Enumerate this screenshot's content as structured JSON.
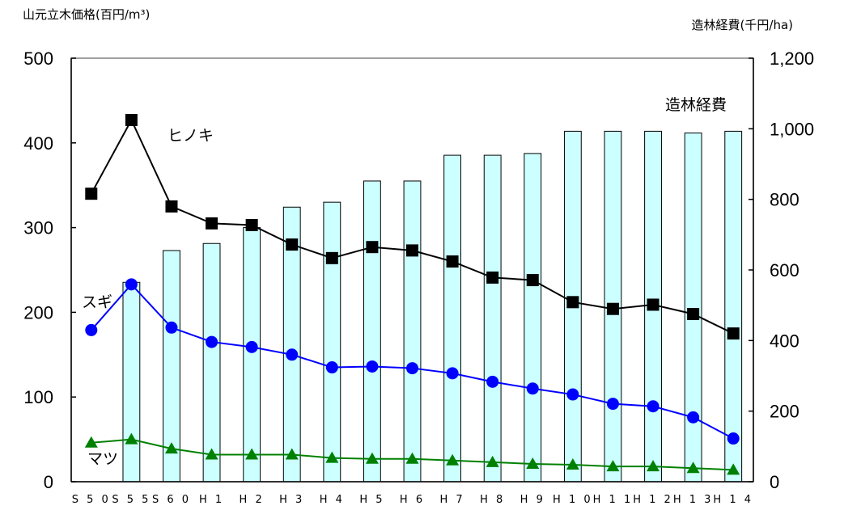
{
  "chart_data": {
    "type": "bar-line",
    "left_axis_title": "山元立木価格(百円/m³)",
    "right_axis_title": "造林経費(千円/ha)",
    "categories": [
      "S50",
      "S55",
      "S60",
      "H1",
      "H2",
      "H3",
      "H4",
      "H5",
      "H6",
      "H7",
      "H8",
      "H9",
      "H10",
      "H11",
      "H12",
      "H13",
      "H14"
    ],
    "left_axis": {
      "min": 0,
      "max": 500,
      "ticks": [
        "0",
        "100",
        "200",
        "300",
        "400",
        "500"
      ]
    },
    "right_axis": {
      "min": 0,
      "max": 1200,
      "ticks": [
        "0",
        "200",
        "400",
        "600",
        "800",
        "1,000",
        "1,200"
      ]
    },
    "grid": false,
    "series": [
      {
        "name": "造林経費",
        "kind": "bar",
        "axis": "right",
        "color": "#ccffff",
        "values": [
          null,
          565,
          655,
          675,
          720,
          778,
          792,
          852,
          852,
          925,
          925,
          930,
          993,
          993,
          993,
          988,
          993
        ]
      },
      {
        "name": "ヒノキ",
        "kind": "line",
        "axis": "left",
        "color": "#000000",
        "marker": "square",
        "values": [
          340,
          427,
          325,
          305,
          303,
          280,
          264,
          277,
          273,
          260,
          241,
          238,
          212,
          204,
          209,
          198,
          175
        ]
      },
      {
        "name": "スギ",
        "kind": "line",
        "axis": "left",
        "color": "#0000ff",
        "marker": "circle",
        "values": [
          179,
          233,
          182,
          165,
          159,
          150,
          135,
          136,
          134,
          128,
          118,
          110,
          103,
          92,
          89,
          76,
          51
        ]
      },
      {
        "name": "マツ",
        "kind": "line",
        "axis": "left",
        "color": "#008000",
        "marker": "triangle",
        "values": [
          46,
          50,
          39,
          32,
          32,
          32,
          28,
          27,
          27,
          25,
          23,
          21,
          20,
          18,
          18,
          16,
          14
        ]
      }
    ]
  }
}
